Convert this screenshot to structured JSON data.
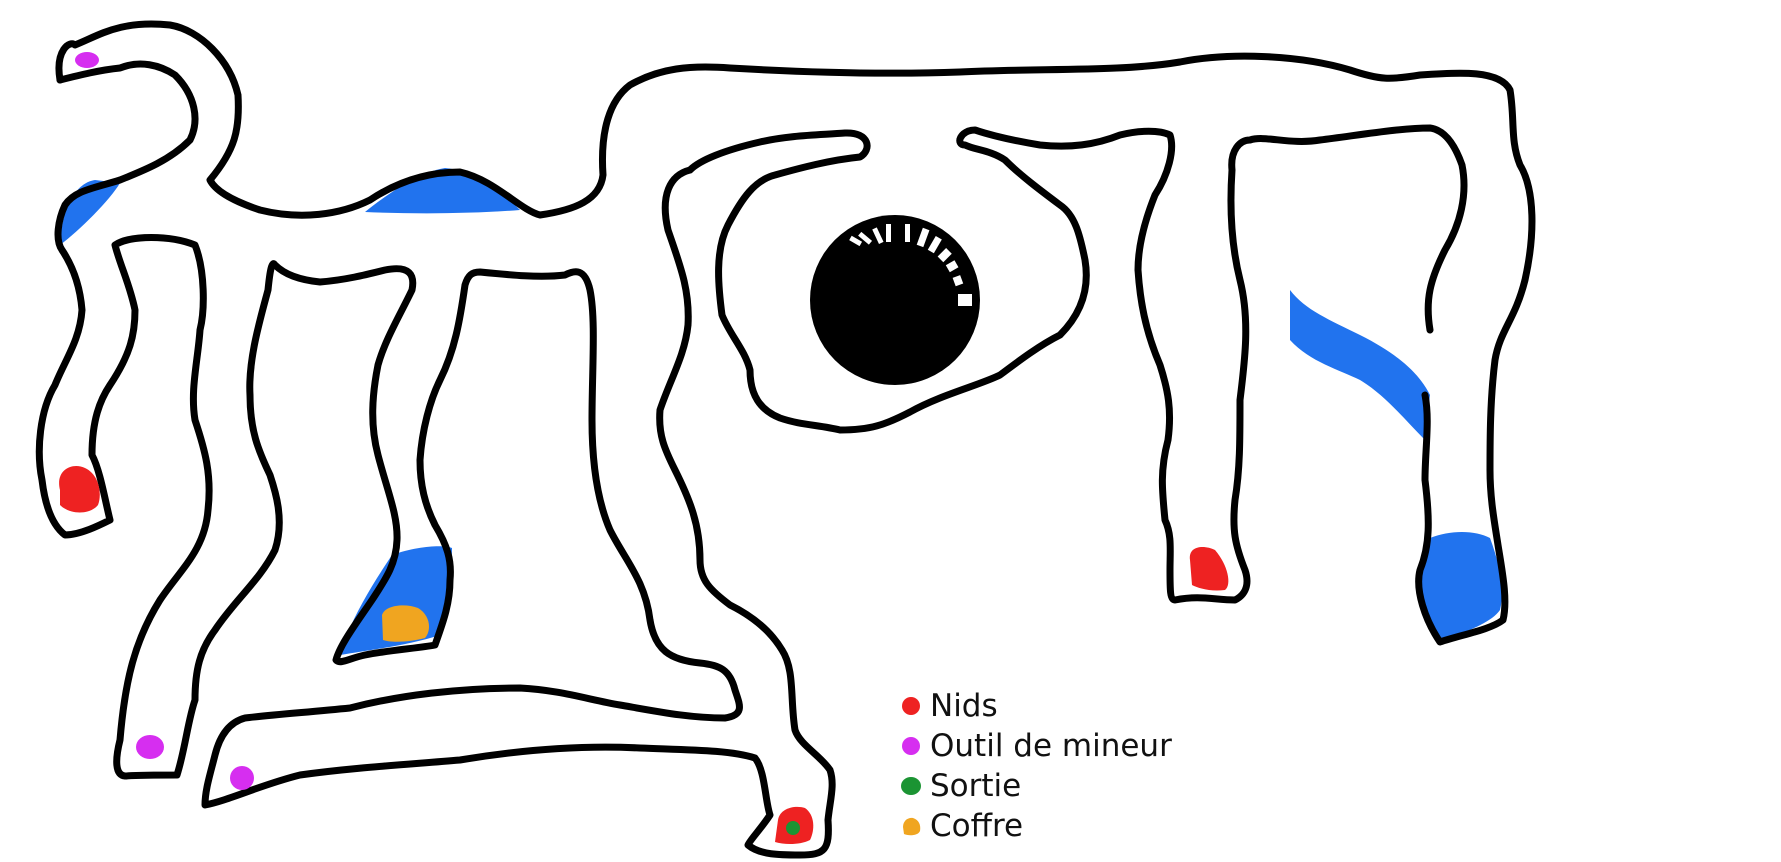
{
  "legend": {
    "items": [
      {
        "label": "Nids",
        "color": "#ee2222",
        "icon": "red-dot"
      },
      {
        "label": "Outil de mineur",
        "color": "#d62ef0",
        "icon": "magenta-dot"
      },
      {
        "label": "Sortie",
        "color": "#1b9433",
        "icon": "green-dot"
      },
      {
        "label": "Coffre",
        "color": "#f0a520",
        "icon": "orange-blob"
      }
    ]
  },
  "colors": {
    "water": "#2173ee",
    "tunnel": "#000000",
    "background": "#ffffff"
  }
}
